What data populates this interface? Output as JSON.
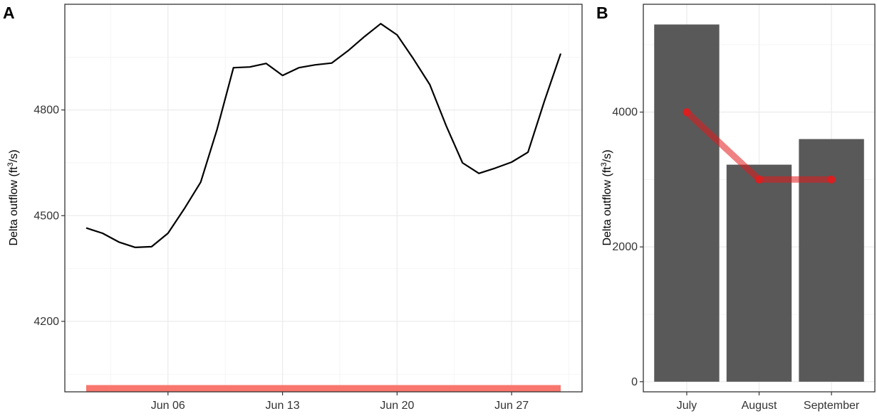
{
  "chart_data": [
    {
      "panel_label": "A",
      "type": "line",
      "title": "",
      "xlabel": "",
      "ylabel": "Delta outflow (ft",
      "ylabel_sup": "3",
      "ylabel_tail": "/s)",
      "xlim": [
        "2021-06-01",
        "2021-06-30"
      ],
      "ylim": [
        4000,
        5100
      ],
      "x_ticks": [
        {
          "label": "Jun 06",
          "value": "2021-06-06"
        },
        {
          "label": "Jun 13",
          "value": "2021-06-13"
        },
        {
          "label": "Jun 20",
          "value": "2021-06-20"
        },
        {
          "label": "Jun 27",
          "value": "2021-06-27"
        }
      ],
      "y_ticks": [
        4200,
        4500,
        4800
      ],
      "grid": true,
      "series": [
        {
          "color": "#000000",
          "x": [
            "2021-06-01",
            "2021-06-02",
            "2021-06-03",
            "2021-06-04",
            "2021-06-05",
            "2021-06-06",
            "2021-06-07",
            "2021-06-08",
            "2021-06-09",
            "2021-06-10",
            "2021-06-11",
            "2021-06-12",
            "2021-06-13",
            "2021-06-14",
            "2021-06-15",
            "2021-06-16",
            "2021-06-17",
            "2021-06-18",
            "2021-06-19",
            "2021-06-20",
            "2021-06-21",
            "2021-06-22",
            "2021-06-23",
            "2021-06-24",
            "2021-06-25",
            "2021-06-26",
            "2021-06-27",
            "2021-06-28",
            "2021-06-29",
            "2021-06-30"
          ],
          "y": [
            4465,
            4450,
            4425,
            4410,
            4412,
            4450,
            4520,
            4595,
            4745,
            4920,
            4922,
            4932,
            4898,
            4920,
            4928,
            4933,
            4968,
            5008,
            5045,
            5013,
            4945,
            4872,
            4755,
            4650,
            4620,
            4635,
            4652,
            4680,
            4825,
            4960
          ]
        },
        {
          "color": "#f8766d",
          "x": [
            "2021-06-01",
            "2021-06-30"
          ],
          "y": [
            4010,
            4010
          ]
        }
      ]
    },
    {
      "panel_label": "B",
      "type": "bar",
      "title": "",
      "xlabel": "",
      "ylabel": "Delta outflow (ft",
      "ylabel_sup": "3",
      "ylabel_tail": "/s)",
      "categories": [
        "July",
        "August",
        "September"
      ],
      "ylim": [
        -150,
        5600
      ],
      "y_ticks": [
        0,
        2000,
        4000
      ],
      "grid": true,
      "series": [
        {
          "type": "bar",
          "color": "#595959",
          "values": [
            5300,
            3220,
            3600
          ]
        },
        {
          "type": "line",
          "color": "#e41a1c",
          "values": [
            4000,
            3000,
            3000
          ]
        }
      ]
    }
  ]
}
